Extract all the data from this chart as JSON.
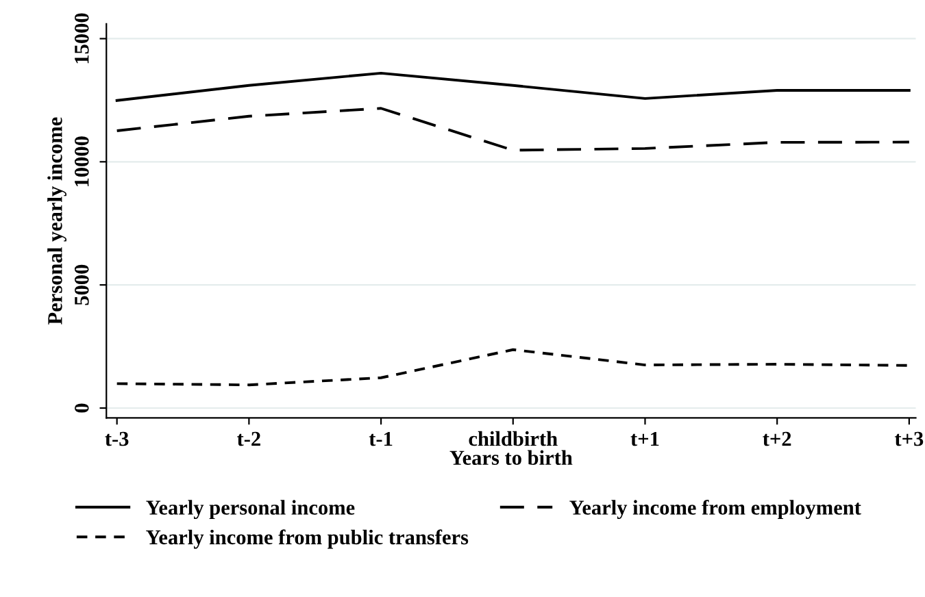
{
  "chart_data": {
    "type": "line",
    "xlabel": "Years to birth",
    "ylabel": "Personal yearly income",
    "categories": [
      "t-3",
      "t-2",
      "t-1",
      "childbirth",
      "t+1",
      "t+2",
      "t+3"
    ],
    "series": [
      {
        "name": "Yearly personal income",
        "color": "#000000",
        "line_style": "solid",
        "values": [
          12490,
          13100,
          13600,
          13100,
          12570,
          12900,
          12900
        ]
      },
      {
        "name": "Yearly income from public transfers",
        "color": "#000000",
        "line_style": "dotted",
        "values": [
          990,
          940,
          1230,
          2370,
          1750,
          1780,
          1730
        ]
      },
      {
        "name": "Yearly income from employment",
        "color": "#000000",
        "line_style": "dashed",
        "values": [
          11260,
          11850,
          12170,
          10470,
          10540,
          10790,
          10800
        ]
      }
    ],
    "ylim": [
      -400,
      15600
    ],
    "yticks": [
      0,
      5000,
      10000,
      15000
    ],
    "grid": "y",
    "legend": "bottom",
    "marker": "none"
  }
}
